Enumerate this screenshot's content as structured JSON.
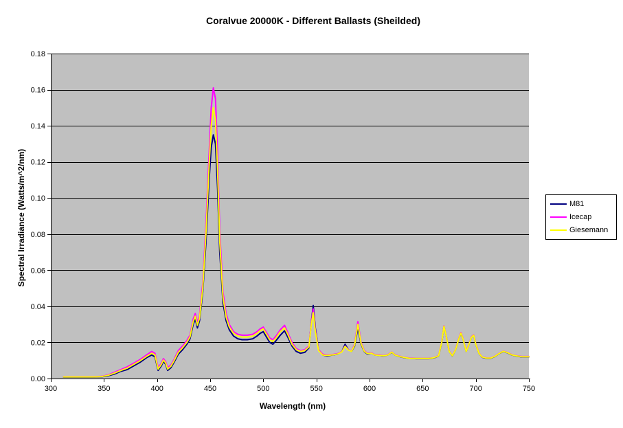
{
  "chart_data": {
    "type": "line",
    "title": "Coralvue 20000K - Different Ballasts (Sheilded)",
    "xlabel": "Wavelength (nm)",
    "ylabel": "Spectral Irradiance (Watts/m^2/nm)",
    "xlim": [
      300,
      750
    ],
    "ylim": [
      0,
      0.18
    ],
    "x_tick_labels": [
      "300",
      "350",
      "400",
      "450",
      "500",
      "550",
      "600",
      "650",
      "700",
      "750"
    ],
    "y_tick_labels": [
      "0.00",
      "0.02",
      "0.04",
      "0.06",
      "0.08",
      "0.10",
      "0.12",
      "0.14",
      "0.16",
      "0.18"
    ],
    "grid": "horizontal",
    "grid_color": "#000000",
    "axis_color": "#000000",
    "plot_bg": "#C0C0C0",
    "legend_position": "right",
    "x": [
      312,
      320,
      330,
      340,
      348,
      354,
      360,
      366,
      372,
      378,
      384,
      390,
      395,
      398,
      401,
      404,
      406,
      408,
      410,
      413,
      416,
      420,
      424,
      428,
      431,
      434,
      436,
      438,
      440,
      443,
      446,
      449,
      451,
      453,
      455,
      457,
      459,
      462,
      465,
      468,
      472,
      476,
      480,
      485,
      490,
      494,
      497,
      500,
      503,
      506,
      509,
      512,
      516,
      520,
      523,
      527,
      531,
      535,
      539,
      543,
      545,
      547,
      549,
      552,
      556,
      560,
      565,
      570,
      574,
      577,
      580,
      583,
      586,
      589,
      592,
      595,
      598,
      602,
      605,
      609,
      613,
      617,
      621,
      624,
      628,
      633,
      638,
      644,
      650,
      656,
      661,
      665,
      668,
      670,
      672,
      675,
      678,
      681,
      684,
      686,
      688,
      691,
      693,
      696,
      698,
      700,
      703,
      706,
      710,
      714,
      718,
      722,
      726,
      730,
      734,
      738,
      743,
      750
    ],
    "series": [
      {
        "name": "M81",
        "color": "#000080",
        "values": [
          0.0008,
          0.0008,
          0.0008,
          0.0008,
          0.001,
          0.0015,
          0.0025,
          0.004,
          0.005,
          0.007,
          0.009,
          0.0115,
          0.013,
          0.012,
          0.0045,
          0.007,
          0.0095,
          0.008,
          0.0045,
          0.006,
          0.009,
          0.0135,
          0.016,
          0.019,
          0.022,
          0.03,
          0.033,
          0.028,
          0.032,
          0.048,
          0.075,
          0.11,
          0.128,
          0.135,
          0.13,
          0.105,
          0.07,
          0.042,
          0.032,
          0.027,
          0.0235,
          0.022,
          0.0215,
          0.0215,
          0.022,
          0.0235,
          0.025,
          0.026,
          0.023,
          0.02,
          0.019,
          0.021,
          0.024,
          0.0265,
          0.023,
          0.018,
          0.015,
          0.014,
          0.0145,
          0.017,
          0.03,
          0.0405,
          0.028,
          0.016,
          0.013,
          0.0125,
          0.013,
          0.0135,
          0.015,
          0.019,
          0.016,
          0.015,
          0.018,
          0.028,
          0.019,
          0.015,
          0.0135,
          0.014,
          0.013,
          0.0128,
          0.0125,
          0.013,
          0.0145,
          0.013,
          0.0122,
          0.0115,
          0.0112,
          0.011,
          0.011,
          0.011,
          0.0115,
          0.0125,
          0.02,
          0.029,
          0.024,
          0.015,
          0.0125,
          0.016,
          0.022,
          0.025,
          0.022,
          0.015,
          0.018,
          0.023,
          0.024,
          0.019,
          0.014,
          0.0118,
          0.0112,
          0.0112,
          0.0122,
          0.0138,
          0.015,
          0.0142,
          0.013,
          0.0125,
          0.012,
          0.012
        ]
      },
      {
        "name": "Icecap",
        "color": "#FF00FF",
        "values": [
          0.001,
          0.001,
          0.001,
          0.001,
          0.0012,
          0.002,
          0.0035,
          0.005,
          0.0065,
          0.0085,
          0.0105,
          0.013,
          0.015,
          0.014,
          0.006,
          0.0085,
          0.011,
          0.0095,
          0.006,
          0.0075,
          0.0105,
          0.0155,
          0.018,
          0.021,
          0.024,
          0.033,
          0.036,
          0.031,
          0.035,
          0.053,
          0.085,
          0.125,
          0.15,
          0.161,
          0.155,
          0.125,
          0.082,
          0.048,
          0.036,
          0.03,
          0.026,
          0.0245,
          0.024,
          0.024,
          0.0245,
          0.026,
          0.0275,
          0.0285,
          0.0255,
          0.0225,
          0.0215,
          0.0235,
          0.027,
          0.0295,
          0.0255,
          0.02,
          0.0165,
          0.0155,
          0.016,
          0.018,
          0.03,
          0.0385,
          0.027,
          0.016,
          0.0135,
          0.013,
          0.0133,
          0.0138,
          0.015,
          0.018,
          0.016,
          0.0152,
          0.019,
          0.0315,
          0.02,
          0.0155,
          0.014,
          0.0142,
          0.0132,
          0.013,
          0.0127,
          0.0132,
          0.0147,
          0.0132,
          0.0124,
          0.0117,
          0.0113,
          0.0112,
          0.0112,
          0.0112,
          0.0117,
          0.0127,
          0.0205,
          0.0292,
          0.0242,
          0.0152,
          0.0127,
          0.0162,
          0.0222,
          0.0255,
          0.0222,
          0.0152,
          0.0182,
          0.0232,
          0.0242,
          0.0192,
          0.0142,
          0.012,
          0.0114,
          0.0114,
          0.0124,
          0.014,
          0.0152,
          0.0144,
          0.0132,
          0.0127,
          0.0122,
          0.0122
        ]
      },
      {
        "name": "Giesemann",
        "color": "#FFFF00",
        "values": [
          0.0009,
          0.0009,
          0.0009,
          0.0009,
          0.0011,
          0.0018,
          0.003,
          0.0045,
          0.0058,
          0.0078,
          0.0098,
          0.0122,
          0.014,
          0.013,
          0.0052,
          0.0078,
          0.0102,
          0.0088,
          0.0052,
          0.0068,
          0.0098,
          0.0145,
          0.017,
          0.02,
          0.023,
          0.0315,
          0.0345,
          0.0295,
          0.0335,
          0.05,
          0.08,
          0.118,
          0.14,
          0.15,
          0.143,
          0.115,
          0.076,
          0.045,
          0.034,
          0.0285,
          0.025,
          0.0235,
          0.023,
          0.023,
          0.0235,
          0.025,
          0.0265,
          0.0275,
          0.0245,
          0.0215,
          0.0205,
          0.0225,
          0.026,
          0.028,
          0.0245,
          0.019,
          0.016,
          0.015,
          0.0155,
          0.0175,
          0.029,
          0.0365,
          0.026,
          0.0155,
          0.013,
          0.0128,
          0.0131,
          0.0136,
          0.0148,
          0.0178,
          0.0158,
          0.015,
          0.0185,
          0.03,
          0.0195,
          0.0152,
          0.0138,
          0.014,
          0.013,
          0.0128,
          0.0126,
          0.013,
          0.0146,
          0.013,
          0.0123,
          0.0116,
          0.0112,
          0.0111,
          0.0111,
          0.0111,
          0.0116,
          0.0126,
          0.0202,
          0.029,
          0.024,
          0.015,
          0.0126,
          0.016,
          0.022,
          0.0252,
          0.022,
          0.015,
          0.018,
          0.023,
          0.024,
          0.019,
          0.014,
          0.0119,
          0.0113,
          0.0113,
          0.0123,
          0.0139,
          0.0151,
          0.0143,
          0.0131,
          0.0126,
          0.0121,
          0.0121
        ]
      }
    ]
  }
}
